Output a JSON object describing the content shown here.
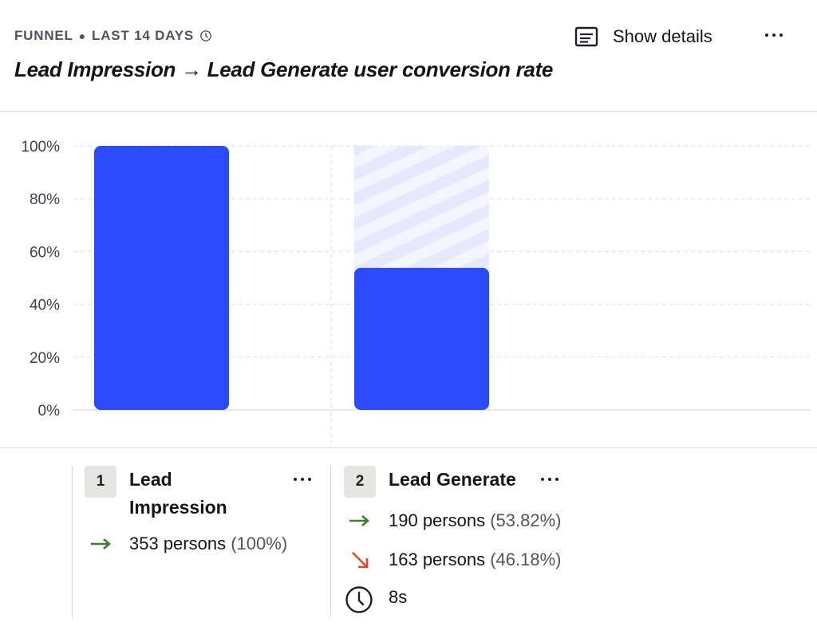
{
  "header": {
    "insight_type": "FUNNEL",
    "date_range": "LAST 14 DAYS",
    "title": "Lead Impression → Lead Generate user conversion rate",
    "show_details_label": "Show details"
  },
  "colors": {
    "bar": "#2a4bf7",
    "bar_remainder": "#e6e9fd",
    "conversion_arrow": "#3b7d2f",
    "dropoff_arrow": "#d84b26"
  },
  "chart_data": {
    "type": "bar",
    "categories": [
      "Lead Impression",
      "Lead Generate"
    ],
    "values": [
      100,
      53.82
    ],
    "ylim": [
      0,
      100
    ],
    "yticks": [
      "0%",
      "20%",
      "40%",
      "60%",
      "80%",
      "100%"
    ],
    "ytick_values": [
      0,
      20,
      40,
      60,
      80,
      100
    ],
    "grid": true
  },
  "steps": [
    {
      "number": "1",
      "name_line1": "Lead",
      "name_line2": "Impression",
      "converted": "353 persons",
      "converted_pct": "(100%)"
    },
    {
      "number": "2",
      "name": "Lead Generate",
      "converted": "190 persons",
      "converted_pct": "(53.82%)",
      "dropped": "163 persons",
      "dropped_pct": "(46.18%)",
      "time": "8s"
    }
  ]
}
